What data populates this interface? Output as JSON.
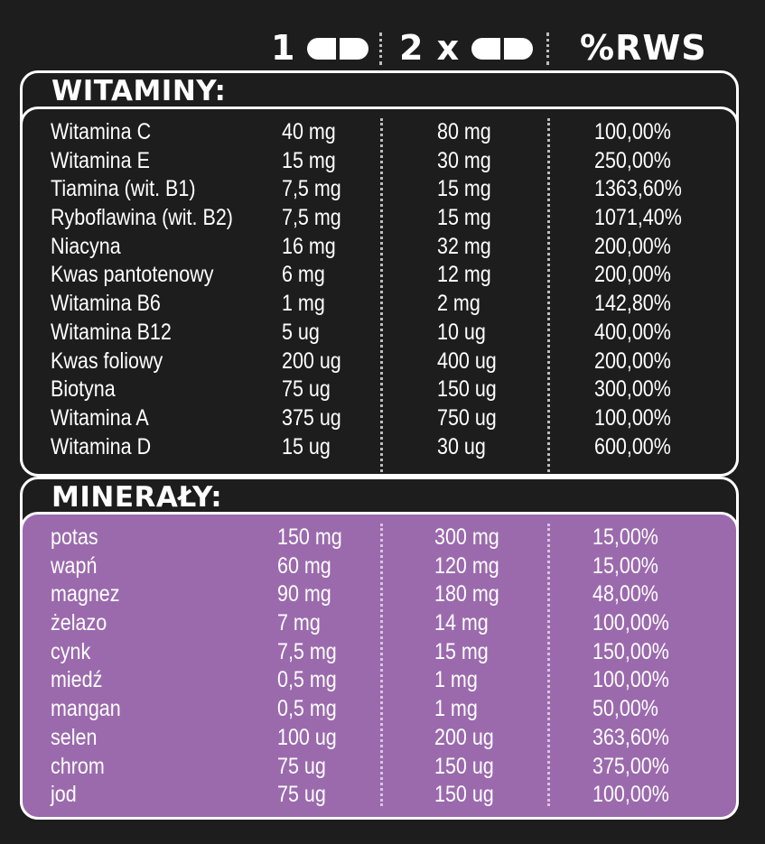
{
  "header": {
    "one_label": "1",
    "two_label": "2 x",
    "rws_label": "%RWS",
    "pill_icon": "capsule-icon"
  },
  "vitamins": {
    "title": "WITAMINY:",
    "rows": [
      {
        "name": "Witamina C",
        "one": "40 mg",
        "two": "80 mg",
        "rws": "100,00%"
      },
      {
        "name": "Witamina E",
        "one": "15 mg",
        "two": "30 mg",
        "rws": "250,00%"
      },
      {
        "name": "Tiamina (wit. B1)",
        "one": "7,5 mg",
        "two": "15 mg",
        "rws": "1363,60%"
      },
      {
        "name": "Ryboflawina (wit. B2)",
        "one": "7,5 mg",
        "two": "15 mg",
        "rws": "1071,40%"
      },
      {
        "name": "Niacyna",
        "one": "16 mg",
        "two": "32 mg",
        "rws": "200,00%"
      },
      {
        "name": "Kwas pantotenowy",
        "one": "6 mg",
        "two": "12 mg",
        "rws": "200,00%"
      },
      {
        "name": "Witamina B6",
        "one": "1 mg",
        "two": "2 mg",
        "rws": "142,80%"
      },
      {
        "name": "Witamina B12",
        "one": "5 ug",
        "two": "10 ug",
        "rws": "400,00%"
      },
      {
        "name": "Kwas foliowy",
        "one": "200 ug",
        "two": "400 ug",
        "rws": "200,00%"
      },
      {
        "name": "Biotyna",
        "one": "75 ug",
        "two": "150 ug",
        "rws": "300,00%"
      },
      {
        "name": "Witamina A",
        "one": "375 ug",
        "two": "750 ug",
        "rws": "100,00%"
      },
      {
        "name": "Witamina D",
        "one": "15 ug",
        "two": "30 ug",
        "rws": "600,00%"
      }
    ]
  },
  "minerals": {
    "title": "MINERAŁY:",
    "rows": [
      {
        "name": "potas",
        "one": "150 mg",
        "two": "300 mg",
        "rws": "15,00%"
      },
      {
        "name": "wapń",
        "one": "60 mg",
        "two": "120 mg",
        "rws": "15,00%"
      },
      {
        "name": "magnez",
        "one": "90 mg",
        "two": "180 mg",
        "rws": "48,00%"
      },
      {
        "name": "żelazo",
        "one": "7 mg",
        "two": "14 mg",
        "rws": "100,00%"
      },
      {
        "name": "cynk",
        "one": "7,5 mg",
        "two": "15 mg",
        "rws": "150,00%"
      },
      {
        "name": "miedź",
        "one": "0,5 mg",
        "two": "1 mg",
        "rws": "100,00%"
      },
      {
        "name": "mangan",
        "one": "0,5 mg",
        "two": "1 mg",
        "rws": "50,00%"
      },
      {
        "name": "selen",
        "one": "100 ug",
        "two": "200 ug",
        "rws": "363,60%"
      },
      {
        "name": "chrom",
        "one": "75 ug",
        "two": "150 ug",
        "rws": "375,00%"
      },
      {
        "name": "jod",
        "one": "75 ug",
        "two": "150 ug",
        "rws": "100,00%"
      }
    ]
  },
  "colors": {
    "background": "#1d1d1d",
    "mineral_panel": "#9b6aad",
    "text": "#ffffff"
  }
}
